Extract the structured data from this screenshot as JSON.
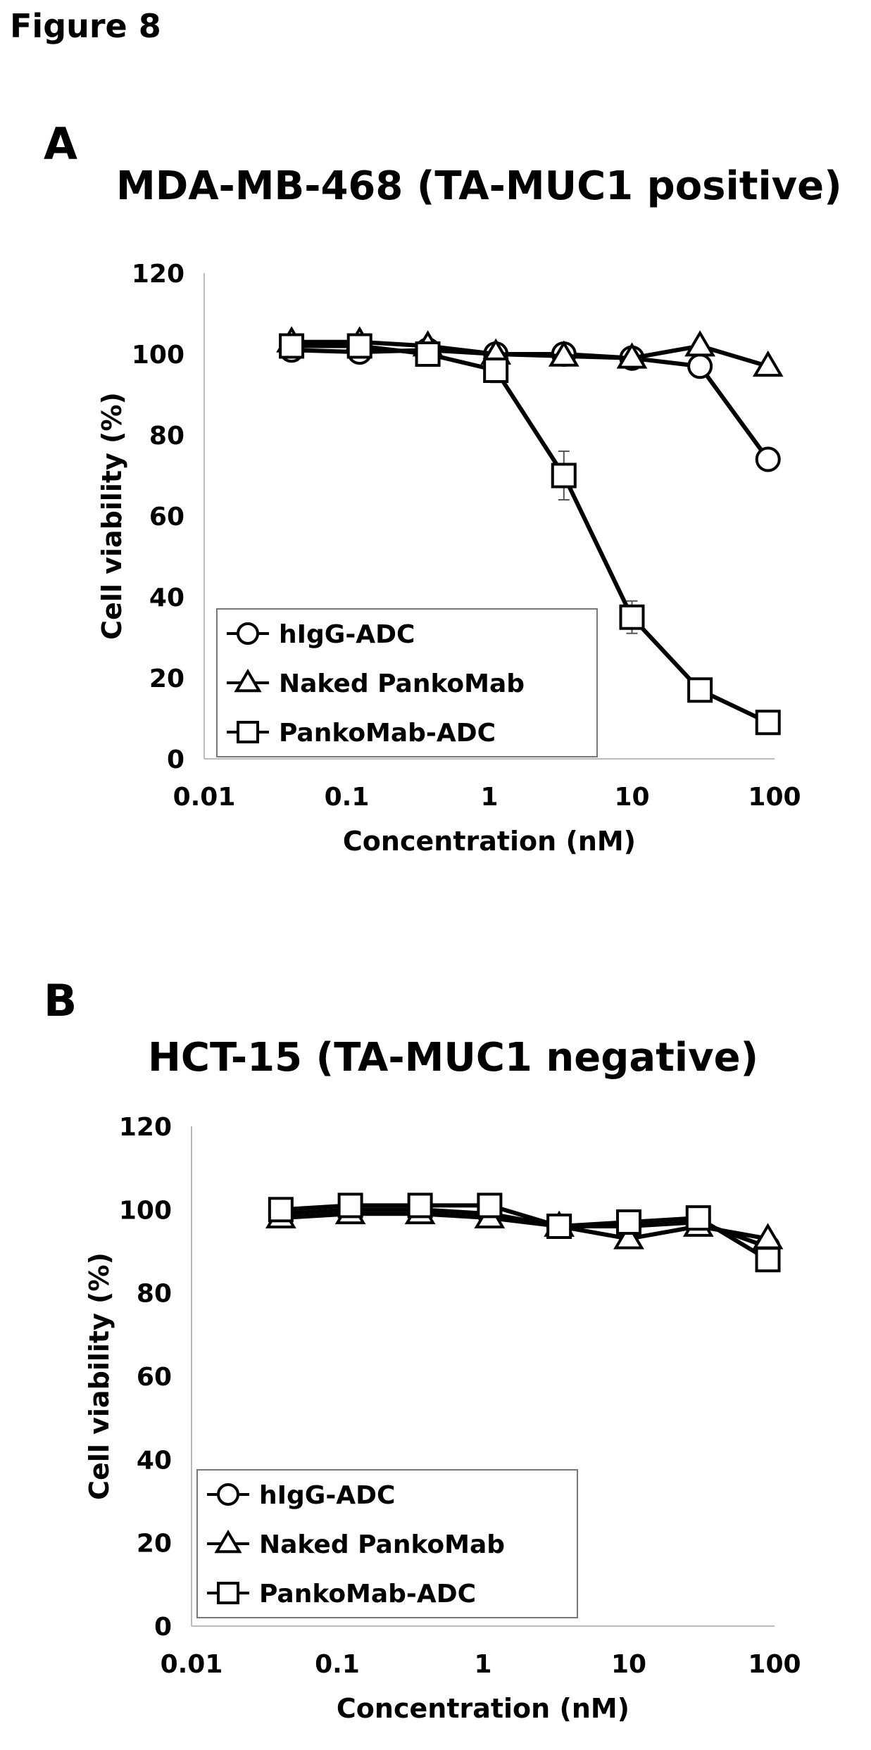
{
  "figure_title": "Figure 8",
  "panels": [
    {
      "letter": "A",
      "title": "MDA-MB-468 (TA-MUC1 positive)"
    },
    {
      "letter": "B",
      "title": "HCT-15 (TA-MUC1 negative)"
    }
  ],
  "chart_data": [
    {
      "type": "line",
      "title": "MDA-MB-468 (TA-MUC1 positive)",
      "xlabel": "Concentration (nM)",
      "ylabel": "Cell viability (%)",
      "x_scale": "log",
      "xlim": [
        0.01,
        100
      ],
      "ylim": [
        0,
        120
      ],
      "x_ticks": [
        "0.01",
        "0.1",
        "1",
        "10",
        "100"
      ],
      "y_ticks": [
        "0",
        "20",
        "40",
        "60",
        "80",
        "100",
        "120"
      ],
      "grid": false,
      "legend_position": "bottom-left",
      "x": [
        0.041,
        0.123,
        0.37,
        1.11,
        3.33,
        10,
        30,
        90
      ],
      "series": [
        {
          "name": "hIgG-ADC",
          "marker": "circle",
          "values": [
            101,
            100.5,
            101,
            100,
            100,
            99,
            97,
            74
          ]
        },
        {
          "name": "Naked PankoMab",
          "marker": "triangle",
          "values": [
            103,
            103,
            102,
            100,
            99.5,
            99,
            102,
            97
          ]
        },
        {
          "name": "PankoMab-ADC",
          "marker": "square",
          "values": [
            102,
            102,
            100,
            96,
            70,
            35,
            17,
            9
          ],
          "errors": [
            1,
            1,
            2,
            3,
            6,
            4,
            1,
            1
          ]
        }
      ]
    },
    {
      "type": "line",
      "title": "HCT-15 (TA-MUC1 negative)",
      "xlabel": "Concentration (nM)",
      "ylabel": "Cell viability (%)",
      "x_scale": "log",
      "xlim": [
        0.01,
        100
      ],
      "ylim": [
        0,
        120
      ],
      "x_ticks": [
        "0.01",
        "0.1",
        "1",
        "10",
        "100"
      ],
      "y_ticks": [
        "0",
        "20",
        "40",
        "60",
        "80",
        "100",
        "120"
      ],
      "grid": false,
      "legend_position": "bottom-left",
      "x": [
        0.041,
        0.123,
        0.37,
        1.11,
        3.33,
        10,
        30,
        90
      ],
      "series": [
        {
          "name": "hIgG-ADC",
          "marker": "circle",
          "values": [
            99,
            100,
            100,
            99,
            96,
            96,
            97,
            91
          ]
        },
        {
          "name": "Naked PankoMab",
          "marker": "triangle",
          "values": [
            98,
            99,
            99,
            98,
            96,
            93,
            96,
            93
          ]
        },
        {
          "name": "PankoMab-ADC",
          "marker": "square",
          "values": [
            100,
            101,
            101,
            101,
            96,
            97,
            98,
            88
          ]
        }
      ]
    }
  ]
}
